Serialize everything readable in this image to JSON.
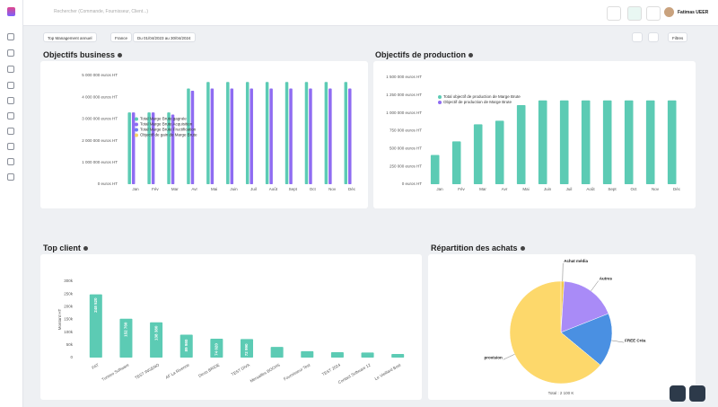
{
  "topbar": {
    "search": "Rechercher (Commande, Fournisseur, Client...)",
    "user": "Fatimas UEER"
  },
  "filters": {
    "view": "Top Management annuel",
    "country": "France",
    "dates": "Du 01/04/2023 au 30/04/2024",
    "more": "Filtres"
  },
  "chart_data": [
    {
      "type": "bar",
      "title": "Objectifs business",
      "categories": [
        "Jan",
        "Fév",
        "Mar",
        "Avr",
        "Mai",
        "Juin",
        "Juil",
        "Août",
        "Sept",
        "Oct",
        "Nov",
        "Déc"
      ],
      "series": [
        {
          "name": "Total Marge Brute gagnée",
          "color": "#5ccbb4",
          "values": [
            3300000,
            3300000,
            3300000,
            4400000,
            4700000,
            4700000,
            4700000,
            4700000,
            4700000,
            4700000,
            4700000,
            4700000
          ]
        },
        {
          "name": "Total Marge Brute Acquisition",
          "color": "#8f6cf2",
          "values": [
            3300000,
            3300000,
            3200000,
            4300000,
            4400000,
            4400000,
            4400000,
            4400000,
            4400000,
            4400000,
            4400000,
            4400000
          ]
        },
        {
          "name": "Total Marge Brute Fructification",
          "color": "#6f7df0",
          "values": [
            0,
            0,
            0,
            0,
            0,
            0,
            0,
            0,
            0,
            0,
            0,
            0
          ]
        },
        {
          "name": "Objectif de gain de Marge Brute",
          "color": "#f6d46b",
          "values": [
            0,
            0,
            0,
            0,
            0,
            0,
            0,
            0,
            0,
            0,
            0,
            0
          ]
        }
      ],
      "ylim": [
        0,
        5000000
      ],
      "yticks": [
        {
          "value": 0,
          "label": "0 euros HT"
        },
        {
          "value": 1000000,
          "label": "1 000 000 euros HT"
        },
        {
          "value": 2000000,
          "label": "2 000 000 euros HT"
        },
        {
          "value": 3000000,
          "label": "3 000 000 euros HT"
        },
        {
          "value": 4000000,
          "label": "4 000 000 euros HT"
        },
        {
          "value": 5000000,
          "label": "5 000 000 euros HT"
        }
      ],
      "grid": false,
      "legend": "center-left"
    },
    {
      "type": "bar",
      "title": "Objectifs de production",
      "categories": [
        "Jan",
        "Fév",
        "Mar",
        "Avr",
        "Mai",
        "Juin",
        "Juil",
        "Août",
        "Sept",
        "Oct",
        "Nov",
        "Déc"
      ],
      "series": [
        {
          "name": "Total objectif de production de Marge Brute",
          "color": "#5ccbb4",
          "values": [
            410000,
            600000,
            840000,
            890000,
            1110000,
            1175000,
            1175000,
            1175000,
            1175000,
            1175000,
            1175000,
            1175000
          ]
        },
        {
          "name": "Objectif de production de Marge Brute",
          "color": "#8f6cf2",
          "values": [
            0,
            0,
            0,
            0,
            0,
            0,
            0,
            0,
            0,
            0,
            0,
            0
          ]
        }
      ],
      "ylim": [
        0,
        1500000
      ],
      "yticks": [
        {
          "value": 0,
          "label": "0 euros HT"
        },
        {
          "value": 250000,
          "label": "250 000 euros HT"
        },
        {
          "value": 500000,
          "label": "500 000 euros HT"
        },
        {
          "value": 750000,
          "label": "750 000 euros HT"
        },
        {
          "value": 1000000,
          "label": "1 000 000 euros HT"
        },
        {
          "value": 1250000,
          "label": "1 250 000 euros HT"
        },
        {
          "value": 1500000,
          "label": "1 500 000 euros HT"
        }
      ],
      "grid": false,
      "legend": "upper-left"
    },
    {
      "type": "bar",
      "title": "Top client",
      "y_label": "Montant HT",
      "categories": [
        "FAT",
        "Tuneeo Software",
        "TEST INGENO",
        "AF La Rivenne",
        "Devis BRIDE",
        "TEST DIVA",
        "Mersailles BOCHS",
        "Fournisseur Test",
        "TEST 2024",
        "Contact Software 12",
        "Le Vieillard Bost"
      ],
      "series": [
        {
          "name": null,
          "color": "#5ccbb4",
          "values": [
            248520,
            152760,
            138380,
            89980,
            74020,
            72990,
            42000,
            25000,
            21000,
            20000,
            14000
          ],
          "value_labels": [
            "248 520",
            "152 760",
            "138 380",
            "89 980",
            "74 020",
            "72 990",
            null,
            null,
            null,
            null,
            null
          ]
        }
      ],
      "ylim": [
        0,
        300000
      ],
      "yticks": [
        0,
        {
          "value": 50000,
          "label": "50k"
        },
        {
          "value": 100000,
          "label": "100k"
        },
        {
          "value": 150000,
          "label": "150k"
        },
        {
          "value": 200000,
          "label": "200k"
        },
        {
          "value": 250000,
          "label": "250k"
        },
        {
          "value": 300000,
          "label": "300k"
        }
      ],
      "grid": false
    },
    {
      "type": "pie",
      "title": "Répartition des achats",
      "categories": [
        "Achat média",
        "Autres",
        "FREE Créa",
        "provision"
      ],
      "values": [
        1,
        18,
        17,
        64
      ],
      "colors": [
        "#f2c94c",
        "#a98bf7",
        "#4a90e2",
        "#fdd86b"
      ],
      "total_label": "Total : 2 100 K"
    }
  ]
}
